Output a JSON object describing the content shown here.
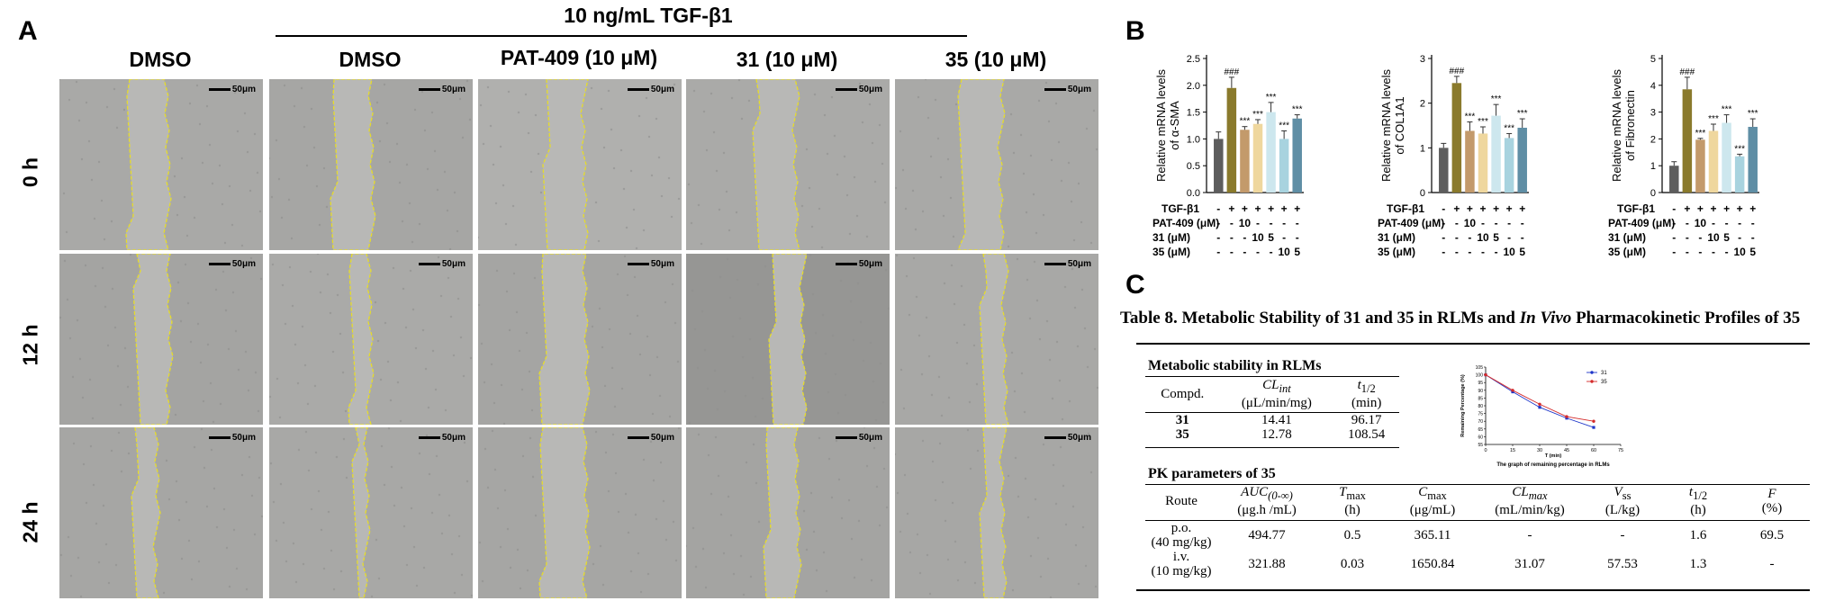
{
  "panelA": {
    "letter": "A",
    "group_header": "10 ng/mL TGF-β1",
    "columns": [
      "DMSO",
      "DMSO",
      "PAT-409 (10 μM)",
      "31 (10 μM)",
      "35 (10 μM)"
    ],
    "rows": [
      "0 h",
      "12 h",
      "24 h"
    ],
    "scale_label": "50μm"
  },
  "panelB": {
    "letter": "B",
    "row_labels": [
      "TGF-β1",
      "PAT-409 (μM)",
      "31 (μM)",
      "35 (μM)"
    ],
    "conditions": {
      "tgf": [
        "-",
        "+",
        "+",
        "+",
        "+",
        "+",
        "+"
      ],
      "pat": [
        "-",
        "-",
        "10",
        "-",
        "-",
        "-",
        "-"
      ],
      "c31": [
        "-",
        "-",
        "-",
        "10",
        "5",
        "-",
        "-"
      ],
      "c35": [
        "-",
        "-",
        "-",
        "-",
        "-",
        "10",
        "5"
      ]
    }
  },
  "chart_data": [
    {
      "type": "bar",
      "ylabel": "Relative mRNA levels of α-SMA",
      "ylim": [
        0,
        2.5
      ],
      "yticks": [
        "0.0",
        "0.5",
        "1.0",
        "1.5",
        "2.0",
        "2.5"
      ],
      "tick_values": [
        0,
        0.5,
        1.0,
        1.5,
        2.0,
        2.5
      ],
      "values": [
        1.0,
        1.95,
        1.17,
        1.28,
        1.5,
        1.0,
        1.38
      ],
      "errors": [
        0.13,
        0.2,
        0.06,
        0.08,
        0.18,
        0.15,
        0.07
      ],
      "labels": [
        "",
        "###",
        "***",
        "***",
        "***",
        "***",
        "***"
      ],
      "colors": [
        "#5d5d5d",
        "#8a7a2c",
        "#c39a6b",
        "#efd79e",
        "#cde7ee",
        "#a8d3df",
        "#5f8ea5"
      ]
    },
    {
      "type": "bar",
      "ylabel": "Relative mRNA levels of COL1A1",
      "ylim": [
        0,
        3
      ],
      "yticks": [
        "0",
        "1",
        "2",
        "3"
      ],
      "tick_values": [
        0,
        1,
        2,
        3
      ],
      "values": [
        1.0,
        2.45,
        1.38,
        1.32,
        1.72,
        1.22,
        1.45
      ],
      "errors": [
        0.1,
        0.15,
        0.2,
        0.15,
        0.25,
        0.1,
        0.2
      ],
      "labels": [
        "",
        "###",
        "***",
        "***",
        "***",
        "***",
        "***"
      ],
      "colors": [
        "#5d5d5d",
        "#8a7a2c",
        "#c39a6b",
        "#efd79e",
        "#cde7ee",
        "#a8d3df",
        "#5f8ea5"
      ]
    },
    {
      "type": "bar",
      "ylabel": "Relative mRNA levels of Fibronectin",
      "ylim": [
        0,
        5
      ],
      "yticks": [
        "0",
        "1",
        "2",
        "3",
        "4",
        "5"
      ],
      "tick_values": [
        0,
        1,
        2,
        3,
        4,
        5
      ],
      "values": [
        1.0,
        3.85,
        1.97,
        2.3,
        2.6,
        1.35,
        2.45
      ],
      "errors": [
        0.15,
        0.45,
        0.05,
        0.25,
        0.3,
        0.08,
        0.3
      ],
      "labels": [
        "",
        "###",
        "***",
        "***",
        "***",
        "***",
        "***"
      ],
      "colors": [
        "#5d5d5d",
        "#8a7a2c",
        "#c39a6b",
        "#efd79e",
        "#cde7ee",
        "#a8d3df",
        "#5f8ea5"
      ]
    },
    {
      "type": "line",
      "title": "The graph of remaining percentage in RLMs",
      "xlabel": "T (min)",
      "ylabel": "Remaining Percentage (%)",
      "xlim": [
        0,
        75
      ],
      "ylim": [
        55,
        105
      ],
      "xticks": [
        "0",
        "15",
        "30",
        "45",
        "60",
        "75"
      ],
      "xtick_values": [
        0,
        15,
        30,
        45,
        60,
        75
      ],
      "yticks": [
        "55",
        "60",
        "65",
        "70",
        "75",
        "80",
        "85",
        "90",
        "95",
        "100",
        "105"
      ],
      "ytick_values": [
        55,
        60,
        65,
        70,
        75,
        80,
        85,
        90,
        95,
        100,
        105
      ],
      "x": [
        0,
        15,
        30,
        45,
        60
      ],
      "series": [
        {
          "name": "31",
          "values": [
            100,
            89,
            79,
            72,
            66
          ],
          "color": "#1d35c9"
        },
        {
          "name": "35",
          "values": [
            100,
            90,
            81,
            73,
            70
          ],
          "color": "#d42a2a"
        }
      ]
    }
  ],
  "panelC": {
    "letter": "C",
    "title_pre": "Table 8. Metabolic Stability of 31 and 35 in RLMs and ",
    "title_italic": "In Vivo",
    "title_post": " Pharmacokinetic Profiles of 35",
    "ms_title": "Metabolic stability in RLMs",
    "ms_head": {
      "compd": "Compd.",
      "cl_name": "CL",
      "cl_sub": "int",
      "cl_unit": "(μL/min/mg)",
      "t_name": "t",
      "t_sub": "1/2",
      "t_unit": "(min)"
    },
    "ms_rows": [
      {
        "id": "31",
        "cl": "14.41",
        "t": "96.17"
      },
      {
        "id": "35",
        "cl": "12.78",
        "t": "108.54"
      }
    ],
    "pk_title": "PK parameters of 35",
    "pk_head": {
      "route": "Route",
      "auc": "AUC",
      "auc_sub": "(0-∞)",
      "auc_unit": "(μg.h /mL)",
      "tmax": "T",
      "tmax_sub": "max",
      "tmax_unit": "(h)",
      "cmax": "C",
      "cmax_sub": "max",
      "cmax_unit": "(μg/mL)",
      "cl": "CL",
      "cl_sub": "max",
      "cl_unit": "(mL/min/kg)",
      "vss": "V",
      "vss_sub": "ss",
      "vss_unit": "(L/kg)",
      "t12": "t",
      "t12_sub": "1/2",
      "t12_unit": "(h)",
      "f": "F",
      "f_unit": "(%)"
    },
    "pk_rows": [
      {
        "route": "p.o.",
        "dose": "(40 mg/kg)",
        "auc": "494.77",
        "tmax": "0.5",
        "cmax": "365.11",
        "cl": "-",
        "vss": "-",
        "t12": "1.6",
        "f": "69.5"
      },
      {
        "route": "i.v.",
        "dose": "(10 mg/kg)",
        "auc": "321.88",
        "tmax": "0.03",
        "cmax": "1650.84",
        "cl": "31.07",
        "vss": "57.53",
        "t12": "1.3",
        "f": "-"
      }
    ]
  }
}
